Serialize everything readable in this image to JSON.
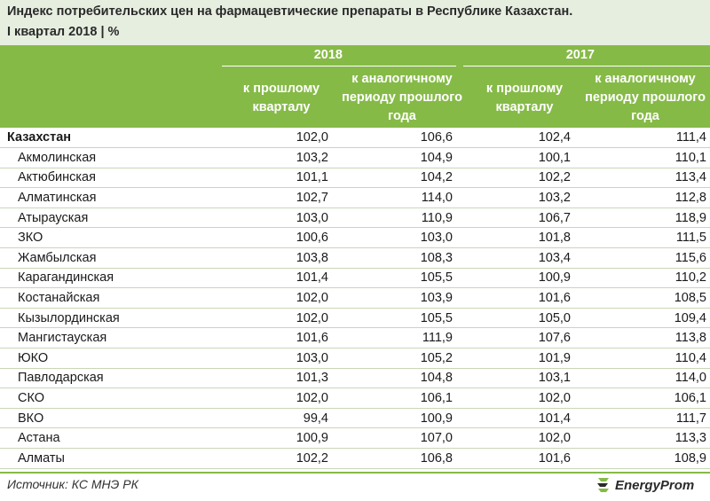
{
  "title": {
    "line1": "Индекс потребительских цен на фармацевтические препараты в Республике Казахстан.",
    "line2": "I квартал 2018 | %"
  },
  "header": {
    "year_2018": "2018",
    "year_2017": "2017",
    "col_prev_quarter": "к прошлому кварталу",
    "col_same_period": "к аналогичному периоду прошлого года"
  },
  "rows": [
    {
      "region": "Казахстан",
      "q2018": "102,0",
      "y2018": "106,6",
      "q2017": "102,4",
      "y2017": "111,4"
    },
    {
      "region": "Акмолинская",
      "q2018": "103,2",
      "y2018": "104,9",
      "q2017": "100,1",
      "y2017": "110,1"
    },
    {
      "region": "Актюбинская",
      "q2018": "101,1",
      "y2018": "104,2",
      "q2017": "102,2",
      "y2017": "113,4"
    },
    {
      "region": "Алматинская",
      "q2018": "102,7",
      "y2018": "114,0",
      "q2017": "103,2",
      "y2017": "112,8"
    },
    {
      "region": "Атырауская",
      "q2018": "103,0",
      "y2018": "110,9",
      "q2017": "106,7",
      "y2017": "118,9"
    },
    {
      "region": "ЗКО",
      "q2018": "100,6",
      "y2018": "103,0",
      "q2017": "101,8",
      "y2017": "111,5"
    },
    {
      "region": "Жамбылская",
      "q2018": "103,8",
      "y2018": "108,3",
      "q2017": "103,4",
      "y2017": "115,6"
    },
    {
      "region": "Карагандинская",
      "q2018": "101,4",
      "y2018": "105,5",
      "q2017": "100,9",
      "y2017": "110,2"
    },
    {
      "region": "Костанайская",
      "q2018": "102,0",
      "y2018": "103,9",
      "q2017": "101,6",
      "y2017": "108,5"
    },
    {
      "region": "Кызылординская",
      "q2018": "102,0",
      "y2018": "105,5",
      "q2017": "105,0",
      "y2017": "109,4"
    },
    {
      "region": "Мангистауская",
      "q2018": "101,6",
      "y2018": "111,9",
      "q2017": "107,6",
      "y2017": "113,8"
    },
    {
      "region": "ЮКО",
      "q2018": "103,0",
      "y2018": "105,2",
      "q2017": "101,9",
      "y2017": "110,4"
    },
    {
      "region": "Павлодарская",
      "q2018": "101,3",
      "y2018": "104,8",
      "q2017": "103,1",
      "y2017": "114,0"
    },
    {
      "region": "СКО",
      "q2018": "102,0",
      "y2018": "106,1",
      "q2017": "102,0",
      "y2017": "106,1"
    },
    {
      "region": "ВКО",
      "q2018": "99,4",
      "y2018": "100,9",
      "q2017": "101,4",
      "y2017": "111,7"
    },
    {
      "region": "Астана",
      "q2018": "100,9",
      "y2018": "107,0",
      "q2017": "102,0",
      "y2017": "113,3"
    },
    {
      "region": "Алматы",
      "q2018": "102,2",
      "y2018": "106,8",
      "q2017": "101,6",
      "y2017": "108,9"
    }
  ],
  "footer": {
    "source": "Источник: КС МНЭ РК",
    "brand": "EnergyProm"
  },
  "colors": {
    "header_green": "#86ba47",
    "title_band": "#e6eee0"
  }
}
